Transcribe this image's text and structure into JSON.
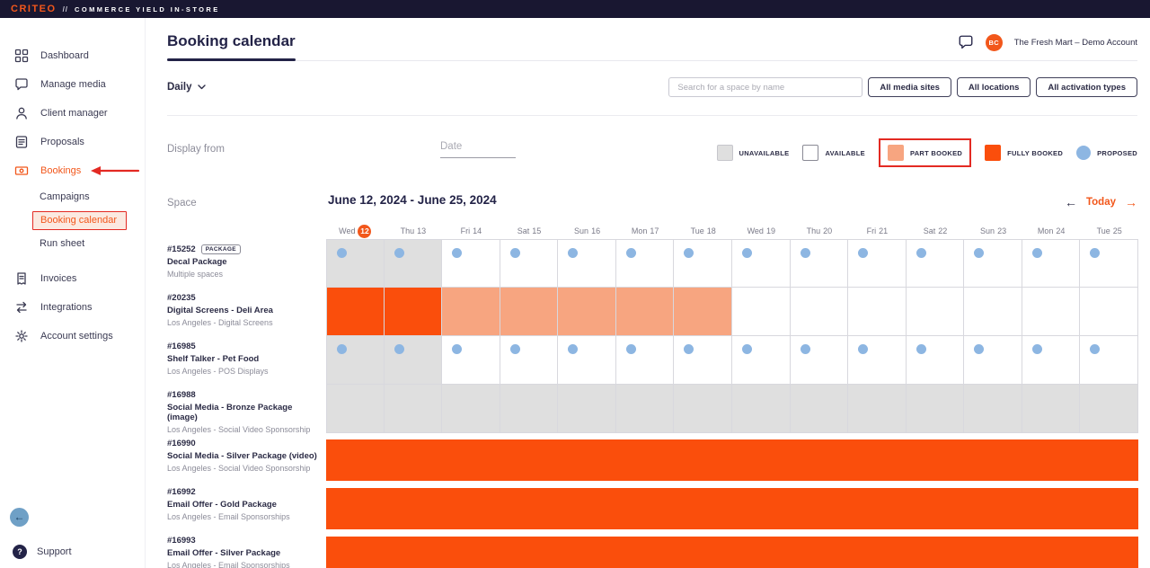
{
  "topbar": {
    "brand": "CRITEO",
    "separator": "//",
    "product": "COMMERCE YIELD IN-STORE"
  },
  "sidebar": {
    "items": [
      {
        "label": "Dashboard"
      },
      {
        "label": "Manage media"
      },
      {
        "label": "Client manager"
      },
      {
        "label": "Proposals"
      },
      {
        "label": "Bookings",
        "active": true
      },
      {
        "label": "Invoices"
      },
      {
        "label": "Integrations"
      },
      {
        "label": "Account settings"
      }
    ],
    "bookings_subitems": [
      {
        "label": "Campaigns"
      },
      {
        "label": "Booking calendar",
        "selected": true
      },
      {
        "label": "Run sheet"
      }
    ],
    "support_label": "Support",
    "help_icon": "?",
    "back_icon": "←"
  },
  "header": {
    "title": "Booking calendar",
    "account_name": "The Fresh Mart – Demo Account",
    "avatar_initials": "BC"
  },
  "filters": {
    "view": "Daily",
    "search_placeholder": "Search for a space by name",
    "media_sites_button": "All media sites",
    "locations_button": "All locations",
    "activation_types_button": "All activation types"
  },
  "display_from": {
    "label": "Display from",
    "date_placeholder": "Date"
  },
  "legend": {
    "unavailable": "UNAVAILABLE",
    "available": "AVAILABLE",
    "part_booked": "PART BOOKED",
    "fully_booked": "FULLY BOOKED",
    "proposed": "PROPOSED"
  },
  "calendar": {
    "space_label": "Space",
    "date_range": "June 12, 2024 - June 25, 2024",
    "prev_icon": "←",
    "today_label": "Today",
    "next_icon": "→",
    "days": [
      {
        "dow": "Wed",
        "date": "12",
        "today": true
      },
      {
        "dow": "Thu",
        "date": "13"
      },
      {
        "dow": "Fri",
        "date": "14"
      },
      {
        "dow": "Sat",
        "date": "15"
      },
      {
        "dow": "Sun",
        "date": "16"
      },
      {
        "dow": "Mon",
        "date": "17"
      },
      {
        "dow": "Tue",
        "date": "18"
      },
      {
        "dow": "Wed",
        "date": "19"
      },
      {
        "dow": "Thu",
        "date": "20"
      },
      {
        "dow": "Fri",
        "date": "21"
      },
      {
        "dow": "Sat",
        "date": "22"
      },
      {
        "dow": "Sun",
        "date": "23"
      },
      {
        "dow": "Mon",
        "date": "24"
      },
      {
        "dow": "Tue",
        "date": "25"
      }
    ],
    "rows": [
      {
        "id": "#15252",
        "badge": "PACKAGE",
        "name": "Decal Package",
        "location": "Multiple spaces",
        "cells": [
          "unavailable-proposed",
          "unavailable-proposed",
          "available-proposed",
          "available-proposed",
          "available-proposed",
          "available-proposed",
          "available-proposed",
          "available-proposed",
          "available-proposed",
          "available-proposed",
          "available-proposed",
          "available-proposed",
          "available-proposed",
          "available-proposed"
        ]
      },
      {
        "id": "#20235",
        "name": "Digital Screens - Deli Area",
        "location": "Los Angeles - Digital Screens",
        "cells": [
          "fully-booked",
          "fully-booked",
          "part-booked",
          "part-booked",
          "part-booked",
          "part-booked",
          "part-booked",
          "available",
          "available",
          "available",
          "available",
          "available",
          "available",
          "available"
        ]
      },
      {
        "id": "#16985",
        "name": "Shelf Talker - Pet Food",
        "location": "Los Angeles - POS Displays",
        "cells": [
          "unavailable-proposed",
          "unavailable-proposed",
          "available-proposed",
          "available-proposed",
          "available-proposed",
          "available-proposed",
          "available-proposed",
          "available-proposed",
          "available-proposed",
          "available-proposed",
          "available-proposed",
          "available-proposed",
          "available-proposed",
          "available-proposed"
        ]
      },
      {
        "id": "#16988",
        "name": "Social Media - Bronze Package (image)",
        "location": "Los Angeles - Social Video Sponsorship",
        "cells": [
          "unavailable",
          "unavailable",
          "unavailable",
          "unavailable",
          "unavailable",
          "unavailable",
          "unavailable",
          "unavailable",
          "unavailable",
          "unavailable",
          "unavailable",
          "unavailable",
          "unavailable",
          "unavailable"
        ]
      },
      {
        "id": "#16990",
        "name": "Social Media - Silver Package (video)",
        "location": "Los Angeles - Social Video Sponsorship",
        "cells": [
          "fully-booked",
          "fully-booked",
          "fully-booked",
          "fully-booked",
          "fully-booked",
          "fully-booked",
          "fully-booked",
          "fully-booked",
          "fully-booked",
          "fully-booked",
          "fully-booked",
          "fully-booked",
          "fully-booked",
          "fully-booked"
        ]
      },
      {
        "id": "#16992",
        "name": "Email Offer - Gold Package",
        "location": "Los Angeles - Email Sponsorships",
        "cells": [
          "fully-booked",
          "fully-booked",
          "fully-booked",
          "fully-booked",
          "fully-booked",
          "fully-booked",
          "fully-booked",
          "fully-booked",
          "fully-booked",
          "fully-booked",
          "fully-booked",
          "fully-booked",
          "fully-booked",
          "fully-booked"
        ]
      },
      {
        "id": "#16993",
        "name": "Email Offer - Silver Package",
        "location": "Los Angeles - Email Sponsorships",
        "cells": [
          "fully-booked",
          "fully-booked",
          "fully-booked",
          "fully-booked",
          "fully-booked",
          "fully-booked",
          "fully-booked",
          "fully-booked",
          "fully-booked",
          "fully-booked",
          "fully-booked",
          "fully-booked",
          "fully-booked",
          "fully-booked"
        ]
      }
    ]
  },
  "colors": {
    "brand_orange": "#F2571B",
    "fully_booked": "#FA4E0C",
    "part_booked": "#F7A580",
    "unavailable": "#DFDFDF",
    "proposed_blue": "#8DB6E2",
    "annotation_red": "#E32A23",
    "navy": "#232347"
  }
}
